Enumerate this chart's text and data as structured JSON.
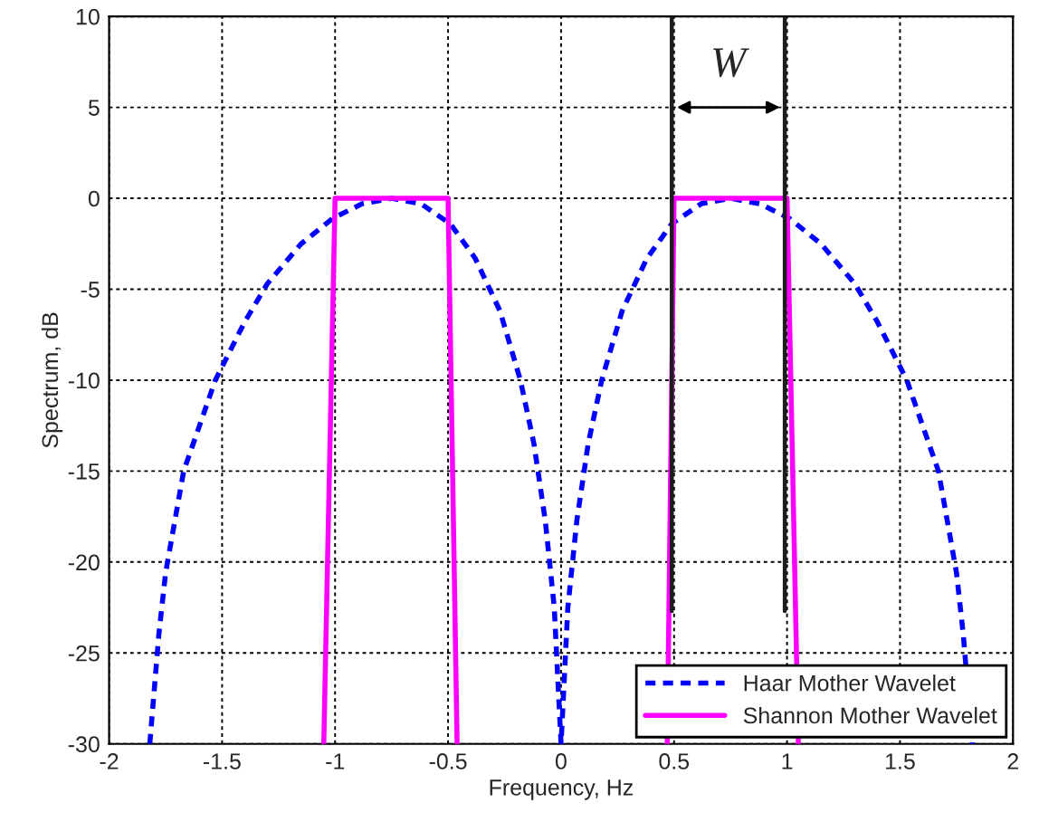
{
  "chart_data": {
    "type": "line",
    "xlabel": "Frequency, Hz",
    "ylabel": "Spectrum, dB",
    "xlim": [
      -2,
      2
    ],
    "ylim": [
      -30,
      10
    ],
    "xticks": [
      -2,
      -1.5,
      -1,
      -0.5,
      0,
      0.5,
      1,
      1.5,
      2
    ],
    "yticks": [
      -30,
      -25,
      -20,
      -15,
      -10,
      -5,
      0,
      5,
      10
    ],
    "grid": true,
    "legend": "bottom right",
    "series": [
      {
        "name": "Haar Mother Wavelet",
        "color": "#0000ff",
        "line_style": "dashed",
        "x": [
          -1.82,
          -1.78,
          -1.75,
          -1.67,
          -1.53,
          -1.4,
          -1.3,
          -1.15,
          -1.01,
          -0.88,
          -0.75,
          -0.62,
          -0.49,
          -0.38,
          -0.27,
          -0.18,
          -0.12,
          -0.07,
          -0.03,
          0,
          0.03,
          0.07,
          0.12,
          0.18,
          0.27,
          0.38,
          0.49,
          0.62,
          0.75,
          0.88,
          1.01,
          1.15,
          1.3,
          1.4,
          1.53,
          1.67,
          1.75,
          1.78,
          1.82
        ],
        "values": [
          -30,
          -24,
          -20.6,
          -15,
          -10,
          -6.8,
          -4.7,
          -2.5,
          -1.1,
          -0.3,
          0,
          -0.3,
          -1.4,
          -3.3,
          -6.2,
          -10,
          -13.5,
          -17.7,
          -22.5,
          -30,
          -22.5,
          -17.7,
          -13.5,
          -10,
          -6.2,
          -3.3,
          -1.4,
          -0.3,
          0,
          -0.3,
          -1.1,
          -2.5,
          -4.7,
          -6.8,
          -10,
          -15,
          -20.6,
          -24,
          -30
        ]
      },
      {
        "name": "Shannon Mother Wavelet",
        "color": "#ff00ff",
        "line_style": "solid",
        "x": [
          -1.05,
          -1,
          -0.5,
          -0.46,
          null,
          0.47,
          0.5,
          1,
          1.05
        ],
        "values": [
          -30,
          0,
          0,
          -30,
          null,
          -30,
          0,
          0,
          -30
        ]
      },
      {
        "color": "#1c1c1c",
        "line_style": "solid",
        "x": [
          0.49,
          0.49,
          0.49,
          null,
          0.99,
          0.99,
          0.99
        ],
        "values": [
          10,
          5,
          -22.7,
          null,
          10,
          5,
          -22.7
        ]
      }
    ],
    "annotations": [
      "W"
    ]
  }
}
